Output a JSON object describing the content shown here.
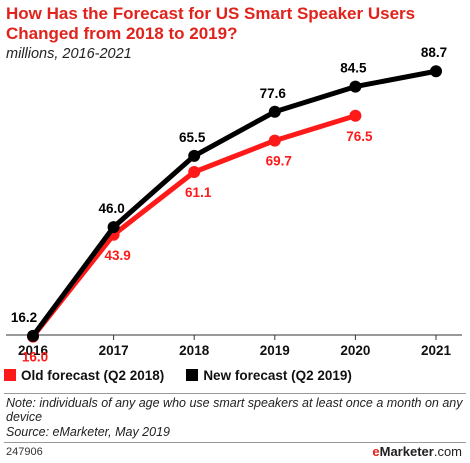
{
  "title": "How Has the Forecast for US Smart Speaker Users Changed from 2018 to 2019?",
  "subtitle": "millions, 2016-2021",
  "legend": {
    "old": "Old forecast (Q2 2018)",
    "new": "New forecast (Q2 2019)"
  },
  "note": "Note: individuals of any age who use smart speakers at least once a month on any device",
  "source": "Source: eMarketer, May 2019",
  "chart_id": "247906",
  "brand": {
    "e": "e",
    "rest": "Marketer",
    "suffix": ".com"
  },
  "colors": {
    "old": "#ff1a1a",
    "new": "#000000",
    "title": "#e0231c"
  },
  "chart_data": {
    "type": "line",
    "x": [
      "2016",
      "2017",
      "2018",
      "2019",
      "2020",
      "2021"
    ],
    "series": [
      {
        "name": "Old forecast (Q2 2018)",
        "values": [
          16.0,
          43.9,
          61.1,
          69.7,
          76.5,
          null
        ]
      },
      {
        "name": "New forecast (Q2 2019)",
        "values": [
          16.2,
          46.0,
          65.5,
          77.6,
          84.5,
          88.7
        ]
      }
    ],
    "old_labels": [
      "16.0",
      "43.9",
      "61.1",
      "69.7",
      "76.5",
      null
    ],
    "new_labels": [
      "16.2",
      "46.0",
      "65.5",
      "77.6",
      "84.5",
      "88.7"
    ],
    "ylim": [
      0,
      100
    ],
    "grid": false,
    "legend_position": "bottom-left"
  }
}
